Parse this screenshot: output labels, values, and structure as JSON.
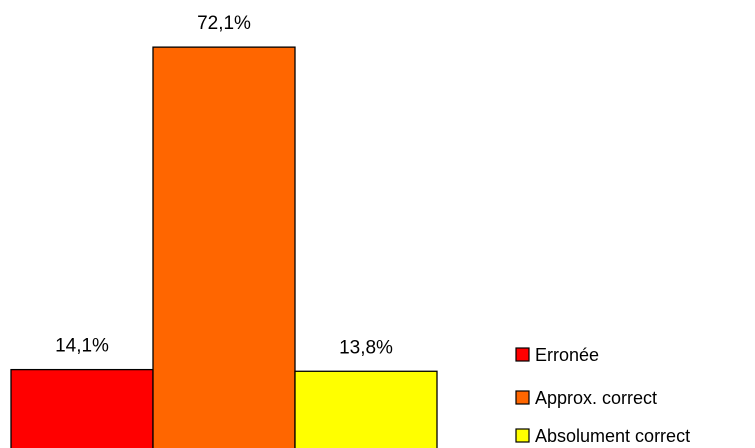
{
  "chart_data": {
    "type": "bar",
    "title": "",
    "xlabel": "",
    "ylabel": "",
    "categories": [
      "Erronée",
      "Approx. correct",
      "Absolument correct"
    ],
    "values": [
      14.1,
      72.1,
      13.8
    ],
    "value_labels": [
      "14,1%",
      "72,1%",
      "13,8%"
    ],
    "colors": [
      "#ff0000",
      "#ff6600",
      "#ffff00"
    ],
    "ylim": [
      0,
      80
    ],
    "grid": false,
    "legend_position": "bottom-right",
    "legend": [
      {
        "label": "Erronée",
        "color": "#ff0000"
      },
      {
        "label": "Approx. correct",
        "color": "#ff6600"
      },
      {
        "label": "Absolument correct",
        "color": "#ffff00"
      }
    ]
  }
}
